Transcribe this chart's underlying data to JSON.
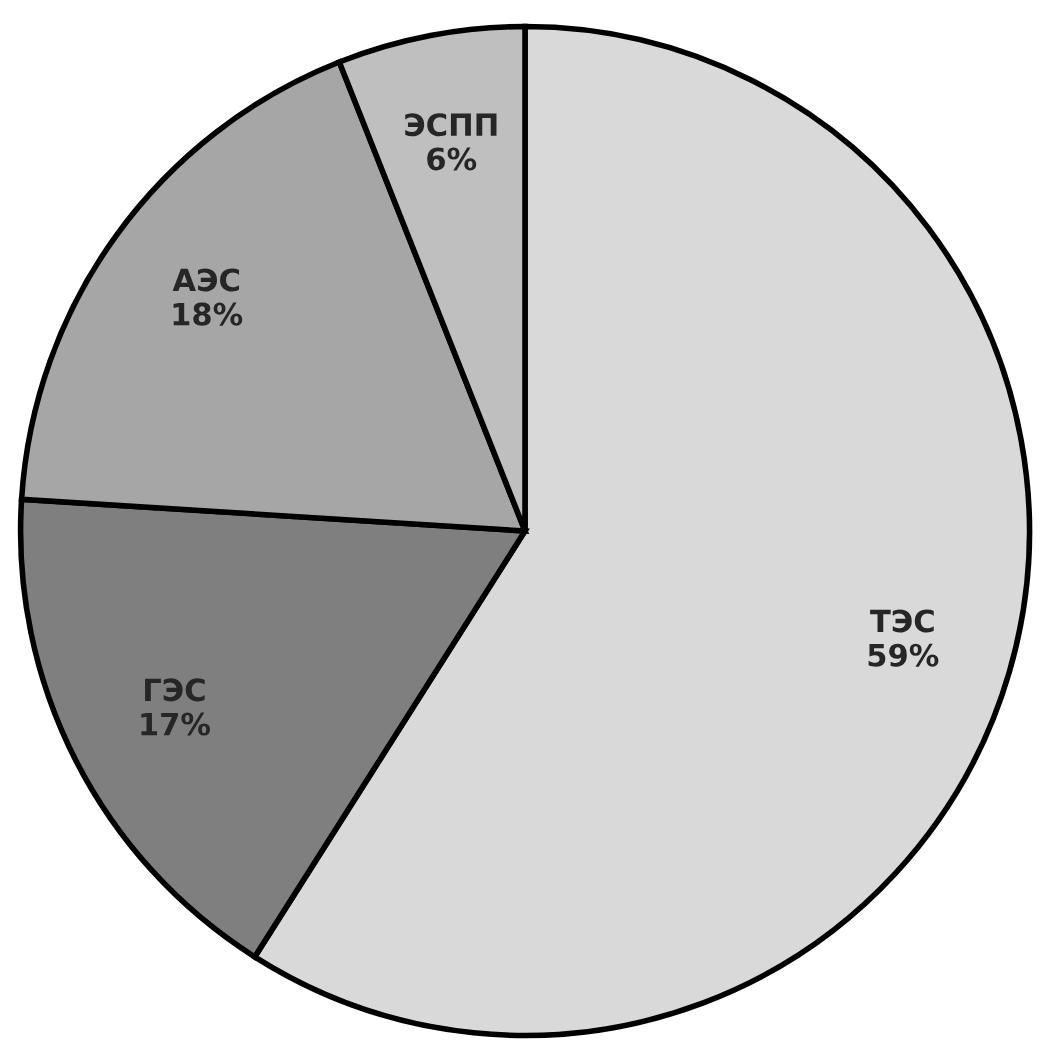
{
  "chart_data": {
    "type": "pie",
    "categories": [
      "ТЭС",
      "ГЭС",
      "АЭС",
      "ЭСПП"
    ],
    "values": [
      59,
      17,
      18,
      6
    ],
    "value_labels": [
      "59%",
      "17%",
      "18%",
      "6%"
    ],
    "colors": [
      "#d9d9d9",
      "#7f7f7f",
      "#a6a6a6",
      "#bfbfbf"
    ],
    "legend": false
  }
}
